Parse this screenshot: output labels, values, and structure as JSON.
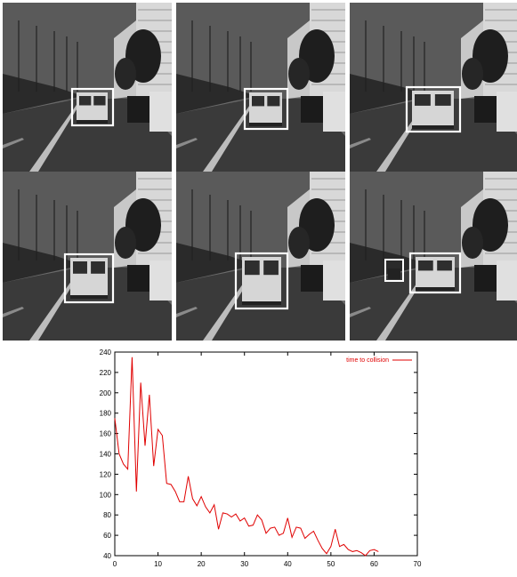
{
  "frames": [
    {
      "id": "frame-1"
    },
    {
      "id": "frame-2"
    },
    {
      "id": "frame-3"
    },
    {
      "id": "frame-4"
    },
    {
      "id": "frame-5"
    },
    {
      "id": "frame-6"
    }
  ],
  "chart_data": {
    "type": "line",
    "x_ticks": [
      0,
      10,
      20,
      30,
      40,
      50,
      60,
      70
    ],
    "y_ticks": [
      40,
      60,
      80,
      100,
      120,
      140,
      160,
      180,
      200,
      220,
      240
    ],
    "xlim": [
      0,
      70
    ],
    "ylim": [
      40,
      240
    ],
    "legend_position": "top-right",
    "series": [
      {
        "name": "time to collision",
        "color": "#e00000",
        "x": [
          0,
          1,
          2,
          3,
          4,
          5,
          6,
          7,
          8,
          9,
          10,
          11,
          12,
          13,
          14,
          15,
          16,
          17,
          18,
          19,
          20,
          21,
          22,
          23,
          24,
          25,
          26,
          27,
          28,
          29,
          30,
          31,
          32,
          33,
          34,
          35,
          36,
          37,
          38,
          39,
          40,
          41,
          42,
          43,
          44,
          45,
          46,
          47,
          48,
          49,
          50,
          51,
          52,
          53,
          54,
          55,
          56,
          57,
          58,
          59,
          60,
          61
        ],
        "y": [
          175,
          140,
          130,
          125,
          235,
          103,
          210,
          148,
          198,
          128,
          164,
          158,
          111,
          110,
          103,
          93,
          93,
          118,
          96,
          89,
          98,
          88,
          82,
          90,
          66,
          82,
          81,
          78,
          81,
          74,
          77,
          69,
          70,
          80,
          75,
          62,
          67,
          68,
          60,
          62,
          77,
          58,
          68,
          67,
          57,
          61,
          64,
          55,
          47,
          42,
          49,
          66,
          49,
          51,
          46,
          44,
          45,
          43,
          40,
          45,
          46,
          44
        ]
      }
    ]
  }
}
